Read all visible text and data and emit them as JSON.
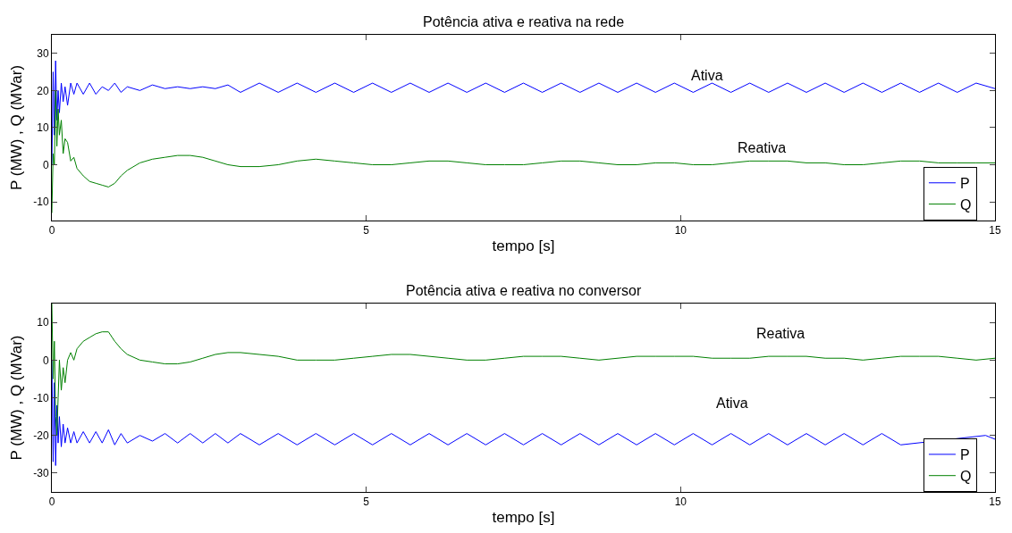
{
  "chart_data": [
    {
      "type": "line",
      "title": "Potência ativa e reativa na rede",
      "xlabel": "tempo [s]",
      "ylabel": "P (MW) , Q (MVar)",
      "x": [
        0,
        0.02,
        0.04,
        0.06,
        0.08,
        0.1,
        0.12,
        0.15,
        0.18,
        0.21,
        0.25,
        0.3,
        0.35,
        0.4,
        0.5,
        0.6,
        0.7,
        0.8,
        0.9,
        1.0,
        1.1,
        1.2,
        1.4,
        1.6,
        1.8,
        2.0,
        2.2,
        2.4,
        2.6,
        2.8,
        3.0,
        3.3,
        3.6,
        3.9,
        4.2,
        4.5,
        4.8,
        5.1,
        5.4,
        5.7,
        6.0,
        6.3,
        6.6,
        6.9,
        7.2,
        7.5,
        7.8,
        8.1,
        8.4,
        8.7,
        9.0,
        9.3,
        9.6,
        9.9,
        10.2,
        10.5,
        10.8,
        11.1,
        11.4,
        11.7,
        12.0,
        12.3,
        12.6,
        12.9,
        13.2,
        13.5,
        13.8,
        14.1,
        14.4,
        14.7,
        15.0
      ],
      "series": [
        {
          "name": "P",
          "color": "#0000ff",
          "values": [
            0,
            25,
            8,
            28,
            12,
            20,
            14,
            22,
            17,
            21,
            16,
            22,
            19,
            22,
            19,
            22,
            19,
            21,
            20,
            22,
            19.5,
            21,
            20,
            21.5,
            20.5,
            21,
            20.5,
            21,
            20.5,
            21.5,
            19.5,
            22,
            19.5,
            22,
            19.5,
            22,
            19.5,
            22,
            19.5,
            22,
            19.5,
            22,
            19.5,
            22,
            19.5,
            22,
            19.5,
            22,
            19.5,
            22,
            19.5,
            22,
            19.5,
            22,
            19.5,
            22,
            19.5,
            22,
            19.5,
            22,
            19.5,
            22,
            19.5,
            22,
            19.5,
            22,
            19.5,
            22,
            19.5,
            22,
            20.5
          ]
        },
        {
          "name": "Q",
          "color": "#008000",
          "values": [
            -13,
            3,
            0,
            20,
            5,
            15,
            8,
            12,
            3,
            7,
            6,
            1,
            2,
            -1,
            -3,
            -4.5,
            -5,
            -5.5,
            -6,
            -5,
            -3,
            -1.5,
            0.5,
            1.5,
            2,
            2.5,
            2.5,
            2,
            1,
            0,
            -0.5,
            -0.5,
            0,
            1,
            1.5,
            1,
            0.5,
            0,
            0,
            0.5,
            1,
            1,
            0.5,
            0,
            0,
            0,
            0.5,
            1,
            1,
            0.5,
            0,
            0,
            0.5,
            0.5,
            0,
            0,
            0.5,
            1,
            1,
            1,
            0.5,
            0.5,
            0,
            0,
            0.5,
            1,
            1,
            0.5,
            0.5,
            0.5,
            0.5
          ]
        }
      ],
      "xlim": [
        0,
        15
      ],
      "xticks": [
        0,
        5,
        10,
        15
      ],
      "ylim": [
        -15,
        35
      ],
      "yticks": [
        -10,
        0,
        10,
        20,
        30
      ],
      "legend": "bottom right",
      "line_style": "solid",
      "annotations": [
        "Ativa",
        "Reativa"
      ]
    },
    {
      "type": "line",
      "title": "Potência ativa e reativa no conversor",
      "xlabel": "tempo [s]",
      "ylabel": "P (MW) , Q (MVar)",
      "x": [
        0,
        0.02,
        0.04,
        0.06,
        0.08,
        0.1,
        0.12,
        0.15,
        0.18,
        0.21,
        0.25,
        0.3,
        0.35,
        0.4,
        0.5,
        0.6,
        0.7,
        0.8,
        0.9,
        1.0,
        1.1,
        1.2,
        1.4,
        1.6,
        1.8,
        2.0,
        2.2,
        2.4,
        2.6,
        2.8,
        3.0,
        3.3,
        3.6,
        3.9,
        4.2,
        4.5,
        4.8,
        5.1,
        5.4,
        5.7,
        6.0,
        6.3,
        6.6,
        6.9,
        7.2,
        7.5,
        7.8,
        8.1,
        8.4,
        8.7,
        9.0,
        9.3,
        9.6,
        9.9,
        10.2,
        10.5,
        10.8,
        11.1,
        11.4,
        11.7,
        12.0,
        12.3,
        12.6,
        12.9,
        13.2,
        13.5,
        13.8,
        14.1,
        14.4,
        14.7,
        15.0
      ],
      "series": [
        {
          "name": "P",
          "color": "#0000ff",
          "x": [
            0,
            0.02,
            0.04,
            0.06,
            0.08,
            0.1,
            0.12,
            0.15,
            0.18,
            0.21,
            0.25,
            0.3,
            0.35,
            0.4,
            0.5,
            0.6,
            0.7,
            0.8,
            0.9,
            1.0,
            1.1,
            1.2,
            1.4,
            1.6,
            1.8,
            2.0,
            2.2,
            2.4,
            2.6,
            2.8,
            3.0,
            3.3,
            3.6,
            3.9,
            4.2,
            4.5,
            4.8,
            5.1,
            5.4,
            5.7,
            6.0,
            6.3,
            6.6,
            6.9,
            7.2,
            7.5,
            7.8,
            8.1,
            8.4,
            8.7,
            9.0,
            9.3,
            9.6,
            9.9,
            10.2,
            10.5,
            10.8,
            11.1,
            11.4,
            11.7,
            12.0,
            12.3,
            12.6,
            12.9,
            13.2,
            13.5,
            14.85,
            15.0
          ],
          "values": [
            0,
            -27,
            -6,
            -28,
            -12,
            -22,
            -15,
            -23,
            -17,
            -22,
            -18,
            -22,
            -19,
            -22,
            -19,
            -22,
            -19,
            -22,
            -18.5,
            -22.5,
            -19.5,
            -22,
            -20,
            -21.5,
            -19.5,
            -22,
            -19.5,
            -22,
            -19.5,
            -22,
            -19.5,
            -22.5,
            -19.5,
            -22.5,
            -19.5,
            -22.5,
            -19.5,
            -22.5,
            -19.5,
            -22.5,
            -19.5,
            -22.5,
            -19.5,
            -22.5,
            -19.5,
            -22.5,
            -19.5,
            -22.5,
            -19.5,
            -22.5,
            -19.5,
            -22.5,
            -19.5,
            -22.5,
            -19.5,
            -22.5,
            -19.5,
            -22.5,
            -19.5,
            -22.5,
            -19.5,
            -22.5,
            -19.5,
            -22.5,
            -19.5,
            -22.5,
            -20,
            -21
          ]
        },
        {
          "name": "Q",
          "color": "#008000",
          "values": [
            15,
            -5,
            5,
            -15,
            -20,
            -10,
            0,
            -8,
            -2,
            -6,
            0,
            2,
            0,
            3,
            5,
            6,
            7,
            7.5,
            7.5,
            5,
            3,
            1.5,
            0,
            -0.5,
            -1,
            -1,
            -0.5,
            0.5,
            1.5,
            2,
            2,
            1.5,
            1,
            0,
            0,
            0,
            0.5,
            1,
            1.5,
            1.5,
            1,
            0.5,
            0,
            0,
            0.5,
            1,
            1,
            1,
            0.5,
            0,
            0.5,
            1,
            1,
            1,
            1,
            0.5,
            0.5,
            0.5,
            1,
            1,
            1,
            0.5,
            0.5,
            0,
            0.5,
            1,
            1,
            1,
            0.5,
            0,
            0.5
          ]
        }
      ],
      "xlim": [
        0,
        15
      ],
      "xticks": [
        0,
        5,
        10,
        15
      ],
      "ylim": [
        -35,
        15
      ],
      "yticks": [
        -30,
        -20,
        -10,
        0,
        10
      ],
      "legend": "bottom right",
      "line_style": "solid",
      "annotations": [
        "Reativa",
        "Ativa"
      ]
    }
  ]
}
